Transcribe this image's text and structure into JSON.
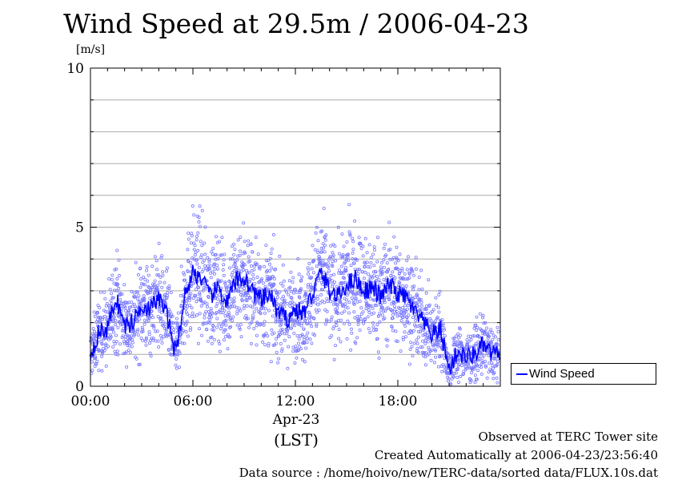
{
  "chart_data": {
    "type": "line",
    "title": "Wind Speed at 29.5m / 2006-04-23",
    "ylabel": "[m/s]",
    "ylim": [
      0,
      10
    ],
    "yticks": [
      0,
      5,
      10
    ],
    "x_tick_labels": [
      "00:00",
      "06:00",
      "12:00",
      "18:00"
    ],
    "x_date_label": "Apr-23",
    "x_timezone_label": "(LST)",
    "grid": true,
    "legend": "bottom-right outside",
    "series": [
      {
        "name": "Wind Speed",
        "color": "#0000ff",
        "x": [
          "00:00",
          "00:30",
          "01:00",
          "01:30",
          "02:00",
          "02:30",
          "03:00",
          "03:30",
          "04:00",
          "04:30",
          "05:00",
          "05:30",
          "06:00",
          "06:30",
          "07:00",
          "07:30",
          "08:00",
          "08:30",
          "09:00",
          "09:30",
          "10:00",
          "10:30",
          "11:00",
          "11:30",
          "12:00",
          "12:30",
          "13:00",
          "13:30",
          "14:00",
          "14:30",
          "15:00",
          "15:30",
          "16:00",
          "16:30",
          "17:00",
          "17:30",
          "18:00",
          "18:30",
          "19:00",
          "19:30",
          "20:00",
          "20:30",
          "21:00",
          "21:30",
          "22:00",
          "22:30",
          "23:00",
          "23:30"
        ],
        "values": [
          1.0,
          1.7,
          1.8,
          2.8,
          1.9,
          2.0,
          2.6,
          2.4,
          2.8,
          2.2,
          1.0,
          2.8,
          3.6,
          3.4,
          2.8,
          3.1,
          2.6,
          3.3,
          3.4,
          3.0,
          2.7,
          2.9,
          2.3,
          2.1,
          2.4,
          2.3,
          2.9,
          3.6,
          3.0,
          2.8,
          3.2,
          3.4,
          3.0,
          3.1,
          2.8,
          3.2,
          2.9,
          2.8,
          2.3,
          2.0,
          1.6,
          1.8,
          0.5,
          1.1,
          0.9,
          1.0,
          1.3,
          1.0
        ]
      }
    ],
    "scatter_color": "#7777ff"
  },
  "footer": {
    "observed": "Observed at TERC Tower site",
    "created": "Created Automatically at 2006-04-23/23:56:40",
    "source": "Data source : /home/hoivo/new/TERC-data/sorted  data/FLUX.10s.dat"
  }
}
